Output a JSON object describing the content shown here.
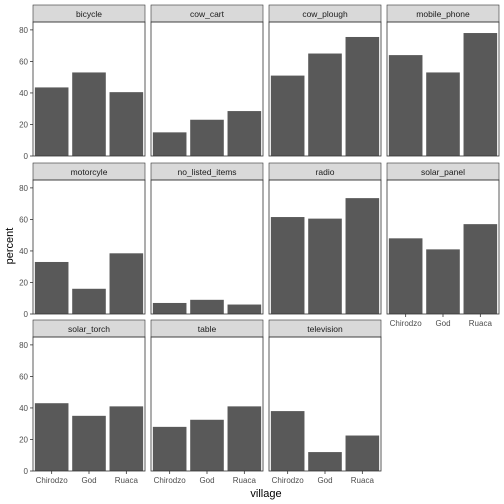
{
  "chart_data": {
    "type": "bar",
    "xlabel": "village",
    "ylabel": "percent",
    "ylim": [
      0,
      85
    ],
    "y_ticks": [
      0,
      20,
      40,
      60,
      80
    ],
    "categories": [
      "Chirodzo",
      "God",
      "Ruaca"
    ],
    "bar_color": "#595959",
    "strip_color": "#d9d9d9",
    "panel_border_color": "#333333",
    "grid": false,
    "facets": [
      {
        "name": "bicycle",
        "values": [
          43.5,
          53,
          40.5
        ]
      },
      {
        "name": "cow_cart",
        "values": [
          15,
          23,
          28.5
        ]
      },
      {
        "name": "cow_plough",
        "values": [
          51,
          65,
          75.5
        ]
      },
      {
        "name": "mobile_phone",
        "values": [
          64,
          53,
          78
        ]
      },
      {
        "name": "motorcyle",
        "values": [
          33,
          16,
          38.5
        ]
      },
      {
        "name": "no_listed_items",
        "values": [
          7,
          9,
          6
        ]
      },
      {
        "name": "radio",
        "values": [
          61.5,
          60.5,
          73.5
        ]
      },
      {
        "name": "solar_panel",
        "values": [
          48,
          41,
          57
        ]
      },
      {
        "name": "solar_torch",
        "values": [
          43,
          35,
          41
        ]
      },
      {
        "name": "table",
        "values": [
          28,
          32.5,
          41
        ]
      },
      {
        "name": "television",
        "values": [
          38,
          12,
          22.5
        ]
      }
    ]
  }
}
